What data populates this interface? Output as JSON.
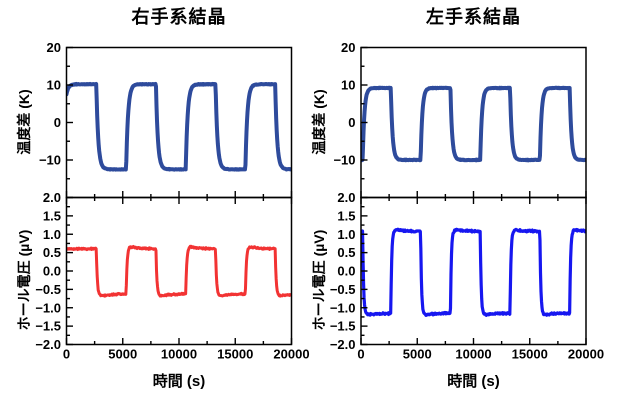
{
  "figure": {
    "background": "#ffffff",
    "frame_color": "#000000",
    "text_color": "#000000"
  },
  "chart_data": [
    {
      "id": "rh-temp",
      "type": "line",
      "title": "右手系結晶",
      "ylabel": "温度差 (K)",
      "xlabel": "",
      "xlim": [
        0,
        20000
      ],
      "ylim": [
        -20,
        20
      ],
      "xticks": [
        0,
        5000,
        10000,
        15000,
        20000
      ],
      "xtick_labels": [
        "",
        "",
        "",
        "",
        ""
      ],
      "show_x_tick_labels": false,
      "x_minor_step": 2500,
      "yticks": [
        20,
        10,
        0,
        -10,
        -20
      ],
      "ytick_labels": [
        "20",
        "10",
        "0",
        "−10",
        ""
      ],
      "y_minor_step": 5,
      "grid": false,
      "legend": null,
      "color": "#2E4B9C",
      "line_width": 4,
      "series": {
        "kind": "square_wave",
        "start_level": "high",
        "high_value": 10.2,
        "low_value": -12.5,
        "transition_times_s": [
          2650,
          5300,
          7950,
          10600,
          13250,
          15900,
          18550
        ],
        "initial_value": 7.5,
        "tau_s": 170,
        "noise_amp": 0.1,
        "overshoot": 0,
        "overshoot_decay_s": 1000
      }
    },
    {
      "id": "rh-hall",
      "type": "line",
      "title": "",
      "ylabel": "ホール電圧 (µV)",
      "xlabel": "時間 (s)",
      "xlim": [
        0,
        20000
      ],
      "ylim": [
        -2,
        2
      ],
      "xticks": [
        0,
        5000,
        10000,
        15000,
        20000
      ],
      "xtick_labels": [
        "0",
        "5000",
        "10000",
        "15000",
        "20000"
      ],
      "show_x_tick_labels": true,
      "x_minor_step": 2500,
      "yticks": [
        2.0,
        1.5,
        1.0,
        0.5,
        0.0,
        -0.5,
        -1.0,
        -1.5,
        -2.0
      ],
      "ytick_labels": [
        "2.0",
        "1.5",
        "1.0",
        "0.5",
        "0.0",
        "−0.5",
        "−1.0",
        "−1.5",
        "−2.0"
      ],
      "y_minor_step": 0.25,
      "grid": false,
      "legend": null,
      "color": "#F23333",
      "line_width": 3,
      "series": {
        "kind": "square_wave",
        "start_level": "high",
        "high_value": 0.6,
        "low_value": -0.62,
        "transition_times_s": [
          2650,
          5300,
          7950,
          10600,
          13250,
          15900,
          18550
        ],
        "initial_value": null,
        "tau_s": 90,
        "noise_amp": 0.025,
        "overshoot": 0.1,
        "overshoot_decay_s": 900
      }
    },
    {
      "id": "lh-temp",
      "type": "line",
      "title": "左手系結晶",
      "ylabel": "温度差 (K)",
      "xlabel": "",
      "xlim": [
        0,
        20000
      ],
      "ylim": [
        -20,
        20
      ],
      "xticks": [
        0,
        5000,
        10000,
        15000,
        20000
      ],
      "xtick_labels": [
        "",
        "",
        "",
        "",
        ""
      ],
      "show_x_tick_labels": false,
      "x_minor_step": 2500,
      "yticks": [
        20,
        10,
        0,
        -10,
        -20
      ],
      "ytick_labels": [
        "20",
        "10",
        "0",
        "−10",
        ""
      ],
      "y_minor_step": 5,
      "grid": false,
      "legend": null,
      "color": "#2E4B9C",
      "line_width": 4,
      "series": {
        "kind": "square_wave",
        "start_level": "low",
        "high_value": 9.2,
        "low_value": -10.0,
        "transition_times_s": [
          150,
          2650,
          5300,
          7950,
          10600,
          13250,
          15900,
          18550
        ],
        "initial_value": null,
        "tau_s": 150,
        "noise_amp": 0.1,
        "overshoot": 0,
        "overshoot_decay_s": 1000
      }
    },
    {
      "id": "lh-hall",
      "type": "line",
      "title": "",
      "ylabel": "ホール電圧 (µV)",
      "xlabel": "時間 (s)",
      "xlim": [
        0,
        20000
      ],
      "ylim": [
        -2,
        2
      ],
      "xticks": [
        0,
        5000,
        10000,
        15000,
        20000
      ],
      "xtick_labels": [
        "0",
        "5000",
        "10000",
        "15000",
        "20000"
      ],
      "show_x_tick_labels": true,
      "x_minor_step": 2500,
      "yticks": [
        2.0,
        1.5,
        1.0,
        0.5,
        0.0,
        -0.5,
        -1.0,
        -1.5,
        -2.0
      ],
      "ytick_labels": [
        "2.0",
        "1.5",
        "1.0",
        "0.5",
        "0.0",
        "−0.5",
        "−1.0",
        "−1.5",
        "−2.0"
      ],
      "y_minor_step": 0.25,
      "grid": false,
      "legend": null,
      "color": "#1717F0",
      "line_width": 3.2,
      "series": {
        "kind": "square_wave",
        "start_level": "high",
        "high_value": 1.08,
        "low_value": -1.15,
        "transition_times_s": [
          150,
          2650,
          5300,
          7950,
          10600,
          13250,
          15900,
          18550
        ],
        "initial_value": null,
        "tau_s": 80,
        "noise_amp": 0.03,
        "overshoot": 0.08,
        "overshoot_decay_s": 700
      }
    }
  ]
}
